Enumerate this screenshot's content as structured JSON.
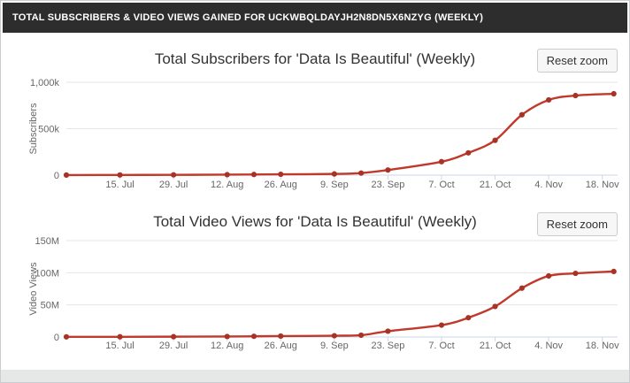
{
  "header": {
    "title": "TOTAL SUBSCRIBERS & VIDEO VIEWS GAINED FOR UCKWBQLDAYJH2N8DN5X6NZYG (WEEKLY)"
  },
  "colors": {
    "header_bg": "#2d2d2d",
    "header_text": "#ffffff",
    "series_red": "#c0392b",
    "marker_red": "#a93226",
    "gridline": "#e6e6e6",
    "axis_line": "#ccd6eb",
    "axis_label": "#666666",
    "title_text": "#333333",
    "page_bg": "#e6e7e7"
  },
  "chart_data": [
    {
      "type": "line",
      "title": "Total Subscribers for 'Data Is Beautiful' (Weekly)",
      "reset_zoom_label": "Reset zoom",
      "ylabel": "Subscribers",
      "legend": "off",
      "grid": "on",
      "x_range_days": [
        0,
        144
      ],
      "x_ticks": [
        {
          "day": 14,
          "label": "15. Jul"
        },
        {
          "day": 28,
          "label": "29. Jul"
        },
        {
          "day": 42,
          "label": "12. Aug"
        },
        {
          "day": 56,
          "label": "26. Aug"
        },
        {
          "day": 70,
          "label": "9. Sep"
        },
        {
          "day": 84,
          "label": "23. Sep"
        },
        {
          "day": 98,
          "label": "7. Oct"
        },
        {
          "day": 112,
          "label": "21. Oct"
        },
        {
          "day": 126,
          "label": "4. Nov"
        },
        {
          "day": 140,
          "label": "18. Nov"
        }
      ],
      "ylim": [
        0,
        1000000
      ],
      "y_ticks": [
        {
          "value": 0,
          "label": "0"
        },
        {
          "value": 500000,
          "label": "500k"
        },
        {
          "value": 1000000,
          "label": "1,000k"
        }
      ],
      "points": [
        {
          "date": "1. Jul",
          "day": 0,
          "value": 1000
        },
        {
          "date": "15. Jul",
          "day": 14,
          "value": 2000
        },
        {
          "date": "29. Jul",
          "day": 28,
          "value": 3000
        },
        {
          "date": "12. Aug",
          "day": 42,
          "value": 5000
        },
        {
          "date": "19. Aug",
          "day": 49,
          "value": 7000
        },
        {
          "date": "26. Aug",
          "day": 56,
          "value": 9000
        },
        {
          "date": "9. Sep",
          "day": 70,
          "value": 13000
        },
        {
          "date": "16. Sep",
          "day": 77,
          "value": 22000
        },
        {
          "date": "23. Sep",
          "day": 84,
          "value": 55000
        },
        {
          "date": "7. Oct",
          "day": 98,
          "value": 145000
        },
        {
          "date": "14. Oct",
          "day": 105,
          "value": 240000
        },
        {
          "date": "21. Oct",
          "day": 112,
          "value": 375000
        },
        {
          "date": "28. Oct",
          "day": 119,
          "value": 650000
        },
        {
          "date": "4. Nov",
          "day": 126,
          "value": 810000
        },
        {
          "date": "11. Nov",
          "day": 133,
          "value": 857000
        },
        {
          "date": "21. Nov",
          "day": 143,
          "value": 876000
        }
      ]
    },
    {
      "type": "line",
      "title": "Total Video Views for 'Data Is Beautiful' (Weekly)",
      "reset_zoom_label": "Reset zoom",
      "ylabel": "Video Views",
      "legend": "off",
      "grid": "on",
      "x_range_days": [
        0,
        144
      ],
      "x_ticks": [
        {
          "day": 14,
          "label": "15. Jul"
        },
        {
          "day": 28,
          "label": "29. Jul"
        },
        {
          "day": 42,
          "label": "12. Aug"
        },
        {
          "day": 56,
          "label": "26. Aug"
        },
        {
          "day": 70,
          "label": "9. Sep"
        },
        {
          "day": 84,
          "label": "23. Sep"
        },
        {
          "day": 98,
          "label": "7. Oct"
        },
        {
          "day": 112,
          "label": "21. Oct"
        },
        {
          "day": 126,
          "label": "4. Nov"
        },
        {
          "day": 140,
          "label": "18. Nov"
        }
      ],
      "ylim": [
        0,
        150000000
      ],
      "y_ticks": [
        {
          "value": 0,
          "label": "0"
        },
        {
          "value": 50000000,
          "label": "50M"
        },
        {
          "value": 100000000,
          "label": "100M"
        },
        {
          "value": 150000000,
          "label": "150M"
        }
      ],
      "points": [
        {
          "date": "1. Jul",
          "day": 0,
          "value": 200000
        },
        {
          "date": "15. Jul",
          "day": 14,
          "value": 300000
        },
        {
          "date": "29. Jul",
          "day": 28,
          "value": 500000
        },
        {
          "date": "12. Aug",
          "day": 42,
          "value": 800000
        },
        {
          "date": "19. Aug",
          "day": 49,
          "value": 1100000
        },
        {
          "date": "26. Aug",
          "day": 56,
          "value": 1400000
        },
        {
          "date": "9. Sep",
          "day": 70,
          "value": 2000000
        },
        {
          "date": "16. Sep",
          "day": 77,
          "value": 2800000
        },
        {
          "date": "23. Sep",
          "day": 84,
          "value": 9000000
        },
        {
          "date": "7. Oct",
          "day": 98,
          "value": 18500000
        },
        {
          "date": "14. Oct",
          "day": 105,
          "value": 30000000
        },
        {
          "date": "21. Oct",
          "day": 112,
          "value": 47500000
        },
        {
          "date": "28. Oct",
          "day": 119,
          "value": 76000000
        },
        {
          "date": "4. Nov",
          "day": 126,
          "value": 95000000
        },
        {
          "date": "11. Nov",
          "day": 133,
          "value": 99000000
        },
        {
          "date": "21. Nov",
          "day": 143,
          "value": 102000000
        }
      ]
    }
  ]
}
